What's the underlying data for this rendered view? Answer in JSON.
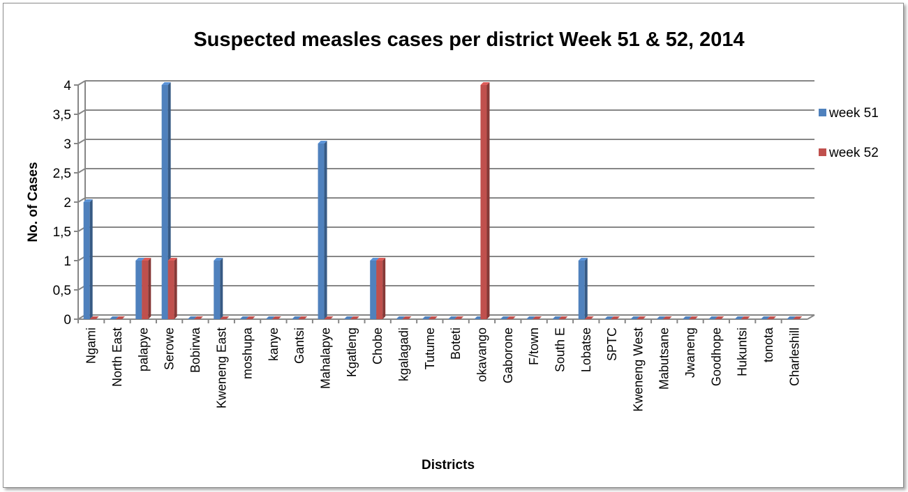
{
  "chart_data": {
    "type": "bar",
    "title": "Suspected measles cases per district Week 51 & 52, 2014",
    "xlabel": "Districts",
    "ylabel": "No. of Cases",
    "ylim": [
      0,
      4
    ],
    "yticks": [
      "0",
      "0,5",
      "1",
      "1,5",
      "2",
      "2,5",
      "3",
      "3,5",
      "4"
    ],
    "grid": true,
    "legend_position": "right",
    "categories": [
      "Ngami",
      "North East",
      "palapye",
      "Serowe",
      "Bobirwa",
      "Kweneng East",
      "moshupa",
      "kanye",
      "Gantsi",
      "Mahalapye",
      "Kgatleng",
      "Chobe",
      "kgalagadi",
      "Tutume",
      "Boteti",
      "okavango",
      "Gaborone",
      "F/town",
      "South E",
      "Lobatse",
      "SPTC",
      "Kweneng West",
      "Mabutsane",
      "Jwaneng",
      "Goodhope",
      "Hukuntsi",
      "tonota",
      "Charleshill"
    ],
    "series": [
      {
        "name": "week 51",
        "color": "#4f81bd",
        "values": [
          2,
          0,
          1,
          4,
          0,
          1,
          0,
          0,
          0,
          3,
          0,
          1,
          0,
          0,
          0,
          0,
          0,
          0,
          0,
          1,
          0,
          0,
          0,
          0,
          0,
          0,
          0,
          0
        ]
      },
      {
        "name": "week 52",
        "color": "#c0504d",
        "values": [
          0,
          0,
          1,
          1,
          0,
          0,
          0,
          0,
          0,
          0,
          0,
          1,
          0,
          0,
          0,
          4,
          0,
          0,
          0,
          0,
          0,
          0,
          0,
          0,
          0,
          0,
          0,
          0
        ]
      }
    ]
  }
}
